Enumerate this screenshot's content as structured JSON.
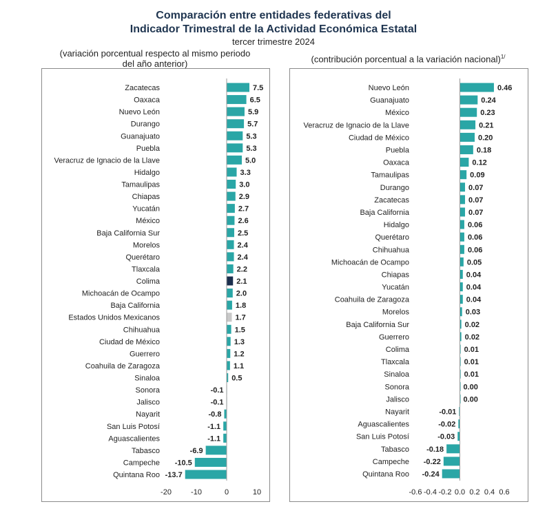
{
  "header": {
    "title_line1": "Comparación entre entidades federativas del",
    "title_line2": "Indicador Trimestral de la Actividad Económica Estatal",
    "subtitle": "tercer trimestre 2024",
    "left_caption_line1": "(variación porcentual respecto al mismo periodo",
    "left_caption_line2": "del año anterior)",
    "right_caption": "(contribución porcentual a la variación nacional)",
    "right_caption_note": "1/"
  },
  "colors": {
    "bar": "#2aa6a6",
    "highlight": "#1b2e4d",
    "national": "#c8c8c8"
  },
  "chart_data": [
    {
      "type": "bar",
      "orientation": "horizontal",
      "categories": [
        "Zacatecas",
        "Oaxaca",
        "Nuevo León",
        "Durango",
        "Guanajuato",
        "Puebla",
        "Veracruz de Ignacio de la Llave",
        "Hidalgo",
        "Tamaulipas",
        "Chiapas",
        "Yucatán",
        "México",
        "Baja California Sur",
        "Morelos",
        "Querétaro",
        "Tlaxcala",
        "Colima",
        "Michoacán de Ocampo",
        "Baja California",
        "Estados Unidos Mexicanos",
        "Chihuahua",
        "Ciudad de México",
        "Guerrero",
        "Coahuila de Zaragoza",
        "Sinaloa",
        "Sonora",
        "Jalisco",
        "Nayarit",
        "San Luis Potosí",
        "Aguascalientes",
        "Tabasco",
        "Campeche",
        "Quintana Roo"
      ],
      "values": [
        7.5,
        6.5,
        5.9,
        5.7,
        5.3,
        5.3,
        5.0,
        3.3,
        3.0,
        2.9,
        2.7,
        2.6,
        2.5,
        2.4,
        2.4,
        2.2,
        2.1,
        2.0,
        1.8,
        1.7,
        1.5,
        1.3,
        1.2,
        1.1,
        0.5,
        -0.1,
        -0.1,
        -0.8,
        -1.1,
        -1.1,
        -6.9,
        -10.5,
        -13.7
      ],
      "labels": [
        "7.5",
        "6.5",
        "5.9",
        "5.7",
        "5.3",
        "5.3",
        "5.0",
        "3.3",
        "3.0",
        "2.9",
        "2.7",
        "2.6",
        "2.5",
        "2.4",
        "2.4",
        "2.2",
        "2.1",
        "2.0",
        "1.8",
        "1.7",
        "1.5",
        "1.3",
        "1.2",
        "1.1",
        "0.5",
        "-0.1",
        "-0.1",
        "-0.8",
        "-1.1",
        "-1.1",
        "-6.9",
        "-10.5",
        "-13.7"
      ],
      "highlight": "Colima",
      "national": "Estados Unidos Mexicanos",
      "xlim": [
        -20,
        10
      ],
      "ticks": [
        -20,
        -10,
        0,
        10
      ],
      "tick_labels": [
        "-20",
        "-10",
        "0",
        "10"
      ]
    },
    {
      "type": "bar",
      "orientation": "horizontal",
      "categories": [
        "Nuevo León",
        "Guanajuato",
        "México",
        "Veracruz de Ignacio de la Llave",
        "Ciudad de México",
        "Puebla",
        "Oaxaca",
        "Tamaulipas",
        "Durango",
        "Zacatecas",
        "Baja California",
        "Hidalgo",
        "Querétaro",
        "Chihuahua",
        "Michoacán de Ocampo",
        "Chiapas",
        "Yucatán",
        "Coahuila de Zaragoza",
        "Morelos",
        "Baja California Sur",
        "Guerrero",
        "Colima",
        "Tlaxcala",
        "Sinaloa",
        "Sonora",
        "Jalisco",
        "Nayarit",
        "Aguascalientes",
        "San Luis Potosí",
        "Tabasco",
        "Campeche",
        "Quintana Roo"
      ],
      "values": [
        0.46,
        0.24,
        0.23,
        0.21,
        0.2,
        0.18,
        0.12,
        0.09,
        0.07,
        0.07,
        0.07,
        0.06,
        0.06,
        0.06,
        0.05,
        0.04,
        0.04,
        0.04,
        0.03,
        0.02,
        0.02,
        0.01,
        0.01,
        0.01,
        0.0,
        0.0,
        -0.01,
        -0.02,
        -0.03,
        -0.18,
        -0.22,
        -0.24
      ],
      "labels": [
        "0.46",
        "0.24",
        "0.23",
        "0.21",
        "0.20",
        "0.18",
        "0.12",
        "0.09",
        "0.07",
        "0.07",
        "0.07",
        "0.06",
        "0.06",
        "0.06",
        "0.05",
        "0.04",
        "0.04",
        "0.04",
        "0.03",
        "0.02",
        "0.02",
        "0.01",
        "0.01",
        "0.01",
        "0.00",
        "0.00",
        "-0.01",
        "-0.02",
        "-0.03",
        "-0.18",
        "-0.22",
        "-0.24"
      ],
      "xlim": [
        -0.6,
        0.6
      ],
      "ticks": [
        -0.6,
        -0.4,
        -0.2,
        0.0,
        0.2,
        0.4,
        0.6
      ],
      "tick_labels": [
        "-0.6",
        "-0.4",
        "-0.2",
        "0.0",
        "0.2",
        "0.4",
        "0.6"
      ]
    }
  ]
}
